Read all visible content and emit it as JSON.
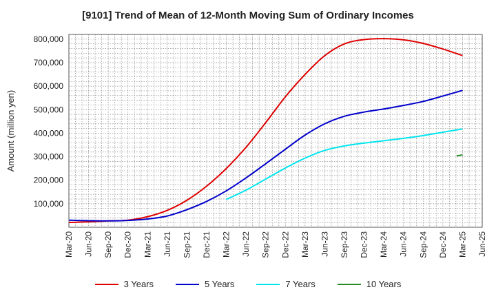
{
  "chart_data": {
    "type": "line",
    "title": "[9101]  Trend of Mean of 12-Month Moving Sum of Ordinary Incomes",
    "xlabel": "",
    "ylabel": "Amount (million yen)",
    "categories": [
      "Mar-20",
      "Jun-20",
      "Sep-20",
      "Dec-20",
      "Mar-21",
      "Jun-21",
      "Sep-21",
      "Dec-21",
      "Mar-22",
      "Jun-22",
      "Sep-22",
      "Dec-22",
      "Mar-23",
      "Jun-23",
      "Sep-23",
      "Dec-23",
      "Mar-24",
      "Jun-24",
      "Sep-24",
      "Dec-24",
      "Mar-25",
      "Jun-25"
    ],
    "ylim": [
      0,
      820000
    ],
    "yticks": [
      100000,
      200000,
      300000,
      400000,
      500000,
      600000,
      700000,
      800000
    ],
    "ytick_labels": [
      "100,000",
      "200,000",
      "300,000",
      "400,000",
      "500,000",
      "600,000",
      "700,000",
      "800,000"
    ],
    "grid": true,
    "legend_position": "bottom",
    "series": [
      {
        "name": "3 Years",
        "color": "#e00000",
        "values": [
          20000,
          23000,
          27000,
          30000,
          45000,
          72000,
          115000,
          175000,
          250000,
          340000,
          445000,
          555000,
          650000,
          730000,
          780000,
          798000,
          802000,
          797000,
          782000,
          758000,
          730000,
          null
        ]
      },
      {
        "name": "5 Years",
        "color": "#0000cc",
        "values": [
          30000,
          28000,
          27000,
          29000,
          35000,
          48000,
          75000,
          110000,
          155000,
          210000,
          270000,
          332000,
          392000,
          440000,
          472000,
          490000,
          503000,
          518000,
          535000,
          558000,
          582000,
          null
        ]
      },
      {
        "name": "7 Years",
        "color": "#00e5ee",
        "values": [
          null,
          null,
          null,
          null,
          null,
          null,
          null,
          null,
          118000,
          158000,
          205000,
          252000,
          294000,
          327000,
          346000,
          358000,
          368000,
          378000,
          390000,
          404000,
          418000,
          null
        ]
      },
      {
        "name": "10 Years",
        "color": "#228b22",
        "values": [
          null,
          null,
          null,
          null,
          null,
          null,
          null,
          null,
          null,
          null,
          null,
          null,
          null,
          null,
          null,
          null,
          null,
          null,
          null,
          null,
          308000,
          null
        ],
        "partial": {
          "from_x": 19.7,
          "from_y": 303000
        }
      }
    ]
  }
}
